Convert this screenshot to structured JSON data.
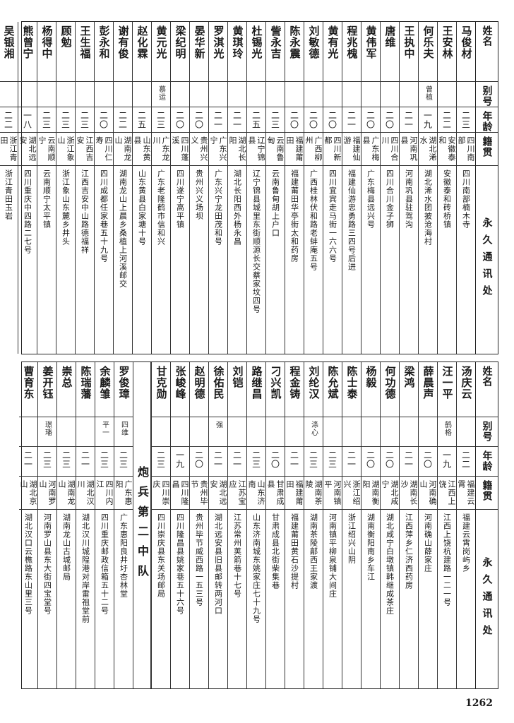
{
  "headers": {
    "name": "姓名",
    "alias": "别号",
    "age": "年龄",
    "native": "籍贯",
    "address": "永久通讯处"
  },
  "top_table": {
    "rows": [
      {
        "name": "马俊材",
        "alias": "",
        "age": "二三",
        "native": "四川南部",
        "address": "四川南部楠木寺"
      },
      {
        "name": "王安林",
        "alias": "",
        "age": "二二",
        "native": "安徽泰和",
        "address": "安徽泰和砖桥镇"
      },
      {
        "name": "何乐夫",
        "alias": "曾植",
        "age": "一九",
        "native": "湖北浠水",
        "address": "湖北浠水团披沧海村"
      },
      {
        "name": "王执中",
        "alias": "",
        "age": "二一",
        "native": "河南巩县",
        "address": "河南巩县驻驾沟"
      },
      {
        "name": "唐维",
        "alias": "",
        "age": "二〇",
        "native": "四川合川",
        "address": "四川合川金子狮"
      },
      {
        "name": "黄伟军",
        "alias": "",
        "age": "二〇",
        "native": "广东梅县",
        "address": "广东梅县远兴号"
      },
      {
        "name": "程兆槐",
        "alias": "",
        "age": "二一",
        "native": "福建仙游",
        "address": "福建仙游忠勇路三四号后进"
      },
      {
        "name": "黄有光",
        "alias": "",
        "age": "二〇",
        "native": "四川新都",
        "address": "四川宜宾走马街一六六号"
      },
      {
        "name": "刘敏德",
        "alias": "",
        "age": "二〇",
        "native": "广西柳州",
        "address": "广西桂林伏和路老蚌庵五号"
      },
      {
        "name": "陈永震",
        "alias": "",
        "age": "二〇",
        "native": "福建莆田",
        "address": "福建莆田华亭街太和药房"
      },
      {
        "name": "訾永吉",
        "alias": "",
        "age": "二三",
        "native": "云南鲁甸",
        "address": "云南鲁甸胡上户口"
      },
      {
        "name": "杜锡光",
        "alias": "",
        "age": "二五",
        "native": "辽宁锦县",
        "address": "辽宁锦县城里东街顺源长交蔡家坟四号"
      },
      {
        "name": "黄琪玲",
        "alias": "",
        "age": "二一",
        "native": "湖北长阳",
        "address": "湖北长阳西外杨永昌"
      },
      {
        "name": "罗淇光",
        "alias": "",
        "age": "二一",
        "native": "广东兴宁",
        "address": "广东兴宁龙田茂和号"
      },
      {
        "name": "晏华新",
        "alias": "",
        "age": "二〇",
        "native": "贵州兴义",
        "address": "贵州兴义场坝"
      },
      {
        "name": "梁纪明",
        "alias": "",
        "age": "二〇",
        "native": "四川蓬溪",
        "address": "四川遂宁高平镇"
      },
      {
        "name": "黄元光",
        "alias": "慕运",
        "age": "二三",
        "native": "广东龙川",
        "address": "广东老隆鹤市信和兴"
      },
      {
        "name": "赵化霖",
        "alias": "",
        "age": "二五",
        "native": "山东黄县",
        "address": "山东黄县白家塘十号"
      },
      {
        "name": "谢有俊",
        "alias": "",
        "age": "二二",
        "native": "湖南龙山",
        "address": "湖南龙山上晨乡桑植上河溪邮交"
      },
      {
        "name": "彭永和",
        "alias": "",
        "age": "二〇",
        "native": "四川仁寿",
        "address": "四川成都任家巷五十九号"
      },
      {
        "name": "王生福",
        "alias": "",
        "age": "二三",
        "native": "江西吉安",
        "address": "江西吉安中山路德福祥"
      },
      {
        "name": "顾勉",
        "alias": "",
        "age": "二三",
        "native": "浙江象山",
        "address": "浙江象山东麓乡井头"
      },
      {
        "name": "杨得中",
        "alias": "",
        "age": "二三",
        "native": "云南顺宁",
        "address": "云南顺宁太平镇"
      },
      {
        "name": "熊曾宁",
        "alias": "",
        "age": "一八",
        "native": "湖北远安",
        "address": "四川重庆中四路二七号"
      },
      {
        "name": "吴银湘",
        "alias": "",
        "age": "二二",
        "native": "浙江青田",
        "address": "浙江青田玉岩"
      }
    ]
  },
  "bottom_table": {
    "rows_right": [
      {
        "name": "汤庆云",
        "alias": "",
        "age": "二二",
        "native": "福建云霄",
        "address": "福建云霄岗屿乡"
      },
      {
        "name": "汪一平",
        "alias": "鹤格",
        "age": "一九",
        "native": "江西上饶",
        "address": "江西上饶杭建路一二一号"
      },
      {
        "name": "薛晨声",
        "alias": "",
        "age": "二〇",
        "native": "河南确山",
        "address": "河南确山薛家庄"
      },
      {
        "name": "梁鸿",
        "alias": "",
        "age": "二一",
        "native": "湖南长沙",
        "address": "江西萍乡仁济西药房"
      },
      {
        "name": "何功德",
        "alias": "",
        "age": "二〇",
        "native": "湖北咸宁",
        "address": "湖北咸宁白墩镇韩继成茶庄"
      },
      {
        "name": "杨毅",
        "alias": "",
        "age": "二〇",
        "native": "湖南衡阳",
        "address": "湖南衡阳南乡车江"
      },
      {
        "name": "陈士泰",
        "alias": "",
        "age": "二一",
        "native": "浙江绍兴",
        "address": "浙江绍兴山阴"
      },
      {
        "name": "陈允斌",
        "alias": "",
        "age": "二三",
        "native": "河南镇平",
        "address": "河南镇平柳泉铺大间庄"
      },
      {
        "name": "刘纶汉",
        "alias": "涤心",
        "age": "二三",
        "native": "湖南茶陵",
        "address": "湖南茶陵鄗西王家渡"
      },
      {
        "name": "程金铸",
        "alias": "",
        "age": "二一",
        "native": "福建莆田",
        "address": "福建莆田黄石沙提村"
      },
      {
        "name": "刁兴凯",
        "alias": "",
        "age": "二〇",
        "native": "甘肃成县",
        "address": "甘肃成县北街柴集巷"
      },
      {
        "name": "路继昌",
        "alias": "",
        "age": "二三",
        "native": "山东济南",
        "address": "山东济南城东姚家庄七十九号"
      },
      {
        "name": "刘铠",
        "alias": "",
        "age": "二一",
        "native": "江苏宝应",
        "address": "江苏常州荚箭巷十七号"
      },
      {
        "name": "徐佑民",
        "alias": "强",
        "age": "二一",
        "native": "湖北远安",
        "address": "湖北远安县旧县邮转两河口"
      },
      {
        "name": "赵明德",
        "alias": "",
        "age": "二〇",
        "native": "贵州毕节",
        "address": "贵州毕节威西路一五三号"
      },
      {
        "name": "张峻峰",
        "alias": "",
        "age": "一九",
        "native": "四川隆昌",
        "address": "四川隆昌县姚家巷五十六号"
      },
      {
        "name": "甘克勋",
        "alias": "",
        "age": "二三",
        "native": "四川崇庆",
        "address": "四川崇庆县东关场邮局"
      }
    ],
    "section_title": "炮兵第二中队",
    "rows_left": [
      {
        "name": "罗俊璋",
        "alias": "四维",
        "age": "二三",
        "native": "广东惠阳",
        "address": "广东惠阳良井圩杏林堂"
      },
      {
        "name": "余麟雏",
        "alias": "平一",
        "age": "二三",
        "native": "四川内江",
        "address": "四川重庆邮政信箱五十二号"
      },
      {
        "name": "陈瑞藩",
        "alias": "",
        "age": "二一",
        "native": "湖北汉川",
        "address": "湖北汉川城隍港对岸雷祖堂前"
      },
      {
        "name": "崇总",
        "alias": "",
        "age": "二三",
        "native": "湖南龙山",
        "address": "湖南龙山古城邮局"
      },
      {
        "name": "姜开钰",
        "alias": "璟璠",
        "age": "二三",
        "native": "河南罗山",
        "address": "河南罗山县东大街四宝堂号"
      },
      {
        "name": "曹育东",
        "alias": "",
        "age": "二一",
        "native": "湖北京山",
        "address": "湖北汉口云樵路东山里三号"
      }
    ]
  },
  "page_number": "1262"
}
